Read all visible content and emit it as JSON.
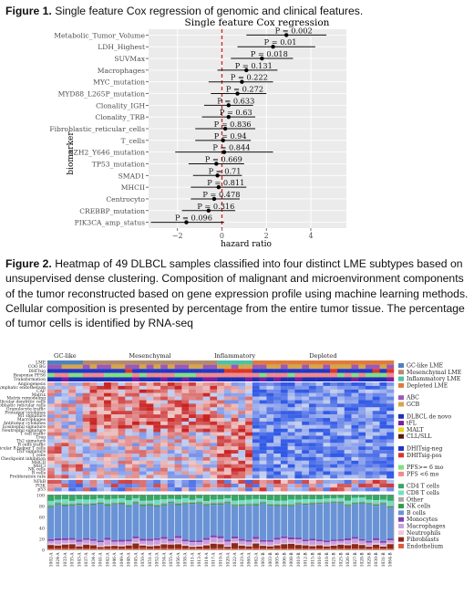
{
  "figure1": {
    "label": "Figure 1.",
    "caption": "Single feature Cox regression of genomic and clinical features.",
    "chart_data": {
      "type": "forest",
      "title": "Single feature Cox regression",
      "xlabel": "hazard ratio",
      "ylabel": "biomarker",
      "xlim": [
        -3.3,
        5.6
      ],
      "xticks": [
        -2,
        0,
        2,
        4
      ],
      "reference_line": 0,
      "rows": [
        {
          "label": "Metabolic_Tumor_Volume",
          "p": "P = 0.002",
          "est": 2.9,
          "lo": 1.1,
          "hi": 4.7
        },
        {
          "label": "LDH_Highest",
          "p": "P = 0.01",
          "est": 2.3,
          "lo": 0.7,
          "hi": 4.2
        },
        {
          "label": "SUVMax",
          "p": "P = 0.018",
          "est": 1.8,
          "lo": 0.4,
          "hi": 3.2
        },
        {
          "label": "Macrophages",
          "p": "P = 0.131",
          "est": 1.1,
          "lo": -0.2,
          "hi": 2.5
        },
        {
          "label": "MYC_mutation",
          "p": "P = 0.222",
          "est": 0.9,
          "lo": -0.6,
          "hi": 2.3
        },
        {
          "label": "MYD88_L265P_mutation",
          "p": "P = 0.272",
          "est": 0.7,
          "lo": -0.5,
          "hi": 2.0
        },
        {
          "label": "Clonality_IGH",
          "p": "P = 0.633",
          "est": 0.3,
          "lo": -0.8,
          "hi": 1.4
        },
        {
          "label": "Clonality_TRB",
          "p": "P = 0.63",
          "est": 0.3,
          "lo": -0.9,
          "hi": 1.5
        },
        {
          "label": "Fibroblastic_reticular_cells",
          "p": "P = 0.836",
          "est": 0.15,
          "lo": -1.2,
          "hi": 1.5
        },
        {
          "label": "T_cells",
          "p": "P = 0.94",
          "est": 0.05,
          "lo": -1.2,
          "hi": 1.3
        },
        {
          "label": "EZH2_Y646_mutation",
          "p": "P = 0.844",
          "est": 0.1,
          "lo": -2.1,
          "hi": 2.3
        },
        {
          "label": "TP53_mutation",
          "p": "P = 0.669",
          "est": -0.25,
          "lo": -1.5,
          "hi": 1.0
        },
        {
          "label": "SMAD1",
          "p": "P = 0.71",
          "est": -0.2,
          "lo": -1.3,
          "hi": 0.9
        },
        {
          "label": "MHCII",
          "p": "P = 0.811",
          "est": -0.15,
          "lo": -1.4,
          "hi": 1.1
        },
        {
          "label": "Centrocyto",
          "p": "P = 0.478",
          "est": -0.35,
          "lo": -1.4,
          "hi": 0.8
        },
        {
          "label": "CREBBP_mutation",
          "p": "P = 0.316",
          "est": -0.6,
          "lo": -1.8,
          "hi": 0.6
        },
        {
          "label": "PIK3CA_amp_status",
          "p": "P = 0.096",
          "est": -1.6,
          "lo": -3.2,
          "hi": 0.1
        }
      ]
    }
  },
  "figure2": {
    "label": "Figure 2.",
    "caption": "Heatmap of 49 DLBCL samples classified into four distinct LME subtypes based on unsupervised dense clustering. Composition of malignant and microenvironment components of the tumor reconstructed based on gene expression profile using machine learning methods. Cellular composition is presented by percentage from the entire tumor tissue. The percentage of tumor cells is identified by RNA-seq",
    "groups": [
      {
        "name": "GC-like",
        "n": 5,
        "color": "#4f81bd"
      },
      {
        "name": "Mesenchymal",
        "n": 19,
        "color": "#b58a6b"
      },
      {
        "name": "Inflammatory",
        "n": 5,
        "color": "#4ec2a8"
      },
      {
        "name": "Depleted",
        "n": 20,
        "color": "#e07a3c"
      }
    ],
    "annotation_rows": [
      "LME",
      "COO BG",
      "DHITsig",
      "Response PFS6",
      "Transformation"
    ],
    "gene_rows": [
      "Angiogenesis",
      "Lymphatic endothelium",
      "CAF",
      "Matrix",
      "Matrix remodeling",
      "Follicular dendritic cells",
      "Fibroblastic reticular cells",
      "Granulocyte traffic",
      "Protumor cytokines",
      "M1 signature",
      "Macrophages",
      "Antitumor cytokines",
      "Eosinophil signature",
      "Neutrophil signature",
      "T cell traffic",
      "Treg",
      "Th2 signature",
      "B cells traffic",
      "Follicular B helper T cells",
      "Th1 signature",
      "T cells",
      "Checkpoint inhibition",
      "MHCII",
      "MHCI",
      "NK cells",
      "B cells",
      "Proliferation rate"
    ],
    "bottom_rows": [
      "NFkB",
      "PI3K",
      "p53"
    ],
    "bar_ticks": [
      "100",
      "80",
      "60",
      "40",
      "20",
      "0"
    ],
    "samples": [
      "1002-A",
      "1024-A",
      "1033-A",
      "1035-A",
      "1043-A",
      "1037-A",
      "1034-A",
      "1041-A",
      "1042-A",
      "1046-A",
      "1049-A",
      "1048-A",
      "1045-A",
      "1050-A",
      "1051-A",
      "1052-A",
      "1054-A",
      "1055-A",
      "1056-A",
      "1058-A",
      "1011-A",
      "1013-A",
      "1014-A",
      "1017-A",
      "1019-A",
      "1020-A",
      "1022-A",
      "1023-A",
      "1060-A",
      "1062-A",
      "1001-B",
      "1003-B",
      "1005-B",
      "1006-B",
      "1008-B",
      "1010-B",
      "1012-B",
      "1015-B",
      "1016-B",
      "1018-B",
      "1021-B",
      "1025-B",
      "1026-B",
      "1027-B",
      "1028-B",
      "1029-B",
      "1030-B",
      "1031-B",
      "1064-B"
    ],
    "legend_groups": [
      {
        "items": [
          {
            "label": "GC-like LME",
            "color": "#4f81bd"
          },
          {
            "label": "Mesenchymal LME",
            "color": "#b58a6b"
          },
          {
            "label": "Inflammatory LME",
            "color": "#4ec2a8"
          },
          {
            "label": "Depleted LME",
            "color": "#e07a3c"
          }
        ]
      },
      {
        "items": [
          {
            "label": "ABC",
            "color": "#9b59b6"
          },
          {
            "label": "GCB",
            "color": "#d6a54a"
          }
        ]
      },
      {
        "items": [
          {
            "label": "DLBCL de novo",
            "color": "#1f2fb8"
          },
          {
            "label": "tFL",
            "color": "#7b1fa2"
          },
          {
            "label": "MALT",
            "color": "#e8d21c"
          },
          {
            "label": "CLL/SLL",
            "color": "#5c1a0f"
          }
        ]
      },
      {
        "items": [
          {
            "label": "DHITsig-neg",
            "color": "#2136c9"
          },
          {
            "label": "DHITsig-pos",
            "color": "#d8362a"
          }
        ]
      },
      {
        "items": [
          {
            "label": "PFS>= 6 mo",
            "color": "#7fe07f"
          },
          {
            "label": "PFS <6 mo",
            "color": "#f28a8a"
          }
        ]
      },
      {
        "items": [
          {
            "label": "CD4 T cells",
            "color": "#3aa564"
          },
          {
            "label": "CD8 T cells",
            "color": "#6fe0c6"
          },
          {
            "label": "Other",
            "color": "#a9a9a9"
          },
          {
            "label": "NK cells",
            "color": "#2e9e4a"
          },
          {
            "label": "B cells",
            "color": "#6a93d6"
          },
          {
            "label": "Monocytes",
            "color": "#7f3fb0"
          },
          {
            "label": "Macrophages",
            "color": "#c9a0dc"
          },
          {
            "label": "Neutrophils",
            "color": "#f0c8d8"
          },
          {
            "label": "Fibroblasts",
            "color": "#8b2a1a"
          },
          {
            "label": "Endothelium",
            "color": "#e05a3a"
          }
        ]
      }
    ]
  }
}
